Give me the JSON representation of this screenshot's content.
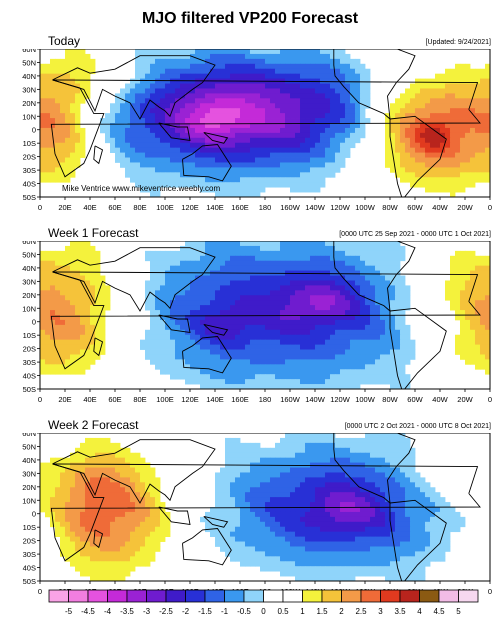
{
  "title": "MJO filtered VP200 Forecast",
  "panels": [
    {
      "title": "Today",
      "meta": "[Updated: 9/24/2021]",
      "credit": "Mike Ventrice www.mikeventrice.weebly.com"
    },
    {
      "title": "Week 1 Forecast",
      "meta": "[0000 UTC 25 Sep 2021 - 0000 UTC 1 Oct 2021]",
      "credit": ""
    },
    {
      "title": "Week 2 Forecast",
      "meta": "[0000 UTC 2 Oct 2021 - 0000 UTC 8 Oct 2021]",
      "credit": ""
    }
  ],
  "lon_ticks": [
    "0",
    "20E",
    "40E",
    "60E",
    "80E",
    "100E",
    "120E",
    "140E",
    "160E",
    "180",
    "160W",
    "140W",
    "120W",
    "100W",
    "80W",
    "60W",
    "40W",
    "20W",
    "0"
  ],
  "lat_ticks": [
    "60N",
    "50N",
    "40N",
    "30N",
    "20N",
    "10N",
    "0",
    "10S",
    "20S",
    "30S",
    "40S",
    "50S"
  ],
  "colorbar": {
    "labels": [
      "-5",
      "-4.5",
      "-4",
      "-3.5",
      "-3",
      "-2.5",
      "-2",
      "-1.5",
      "-1",
      "-0.5",
      "0",
      "0.5",
      "1",
      "1.5",
      "2",
      "2.5",
      "3",
      "3.5",
      "4",
      "4.5",
      "5"
    ],
    "colors": [
      "#f9a3e6",
      "#f27ee0",
      "#e552df",
      "#c42ad8",
      "#9a22d4",
      "#6f1ccf",
      "#3f1bc9",
      "#2830d6",
      "#2f63e6",
      "#3a98ef",
      "#8fd4fa",
      "#ffffff",
      "#ffffff",
      "#f4f23c",
      "#f5c33a",
      "#f39a48",
      "#ef6b38",
      "#e13a1f",
      "#b8241d",
      "#8b5a12",
      "#f2bce6",
      "#f7d8f0"
    ]
  },
  "palette": {
    "neg": [
      "#8fd4fa",
      "#3a98ef",
      "#2f63e6",
      "#2830d6",
      "#3f1bc9",
      "#6f1ccf",
      "#9a22d4",
      "#c42ad8",
      "#e552df",
      "#f27ee0",
      "#f9a3e6"
    ],
    "pos": [
      "#f4f23c",
      "#f5c33a",
      "#f39a48",
      "#ef6b38",
      "#e13a1f",
      "#b8241d",
      "#8b5a12",
      "#c8a0d8"
    ]
  },
  "fields": [
    [
      {
        "lon": 160,
        "lat": 12,
        "amp": -3.9,
        "rx": 75,
        "ry": 30
      },
      {
        "lon": 140,
        "lat": 8,
        "amp": -1.2,
        "rx": 18,
        "ry": 10
      },
      {
        "lon": 250,
        "lat": 15,
        "amp": -0.6,
        "rx": 25,
        "ry": 30
      },
      {
        "lon": 310,
        "lat": 0,
        "amp": 3.3,
        "rx": 42,
        "ry": 30
      },
      {
        "lon": 315,
        "lat": -5,
        "amp": 0.9,
        "rx": 10,
        "ry": 8
      },
      {
        "lon": 20,
        "lat": 10,
        "amp": 1.8,
        "rx": 22,
        "ry": 40
      },
      {
        "lon": 55,
        "lat": 40,
        "amp": 0.9,
        "rx": 28,
        "ry": 15
      }
    ],
    [
      {
        "lon": 190,
        "lat": 8,
        "amp": -2.5,
        "rx": 90,
        "ry": 38
      },
      {
        "lon": 225,
        "lat": 15,
        "amp": -1.4,
        "rx": 22,
        "ry": 12
      },
      {
        "lon": 148,
        "lat": -2,
        "amp": -0.9,
        "rx": 14,
        "ry": 9
      },
      {
        "lon": 30,
        "lat": 10,
        "amp": 2.3,
        "rx": 35,
        "ry": 38
      },
      {
        "lon": 330,
        "lat": 25,
        "amp": 1.3,
        "rx": 30,
        "ry": 28
      },
      {
        "lon": 350,
        "lat": -20,
        "amp": 0.8,
        "rx": 30,
        "ry": 20
      }
    ],
    [
      {
        "lon": 240,
        "lat": 5,
        "amp": -2.6,
        "rx": 70,
        "ry": 32
      },
      {
        "lon": 245,
        "lat": 2,
        "amp": -0.9,
        "rx": 18,
        "ry": 12
      },
      {
        "lon": 55,
        "lat": 0,
        "amp": 2.7,
        "rx": 40,
        "ry": 35
      },
      {
        "lon": 40,
        "lat": 20,
        "amp": 0.6,
        "rx": 20,
        "ry": 20
      },
      {
        "lon": 330,
        "lat": 30,
        "amp": 1.1,
        "rx": 30,
        "ry": 20
      }
    ]
  ]
}
